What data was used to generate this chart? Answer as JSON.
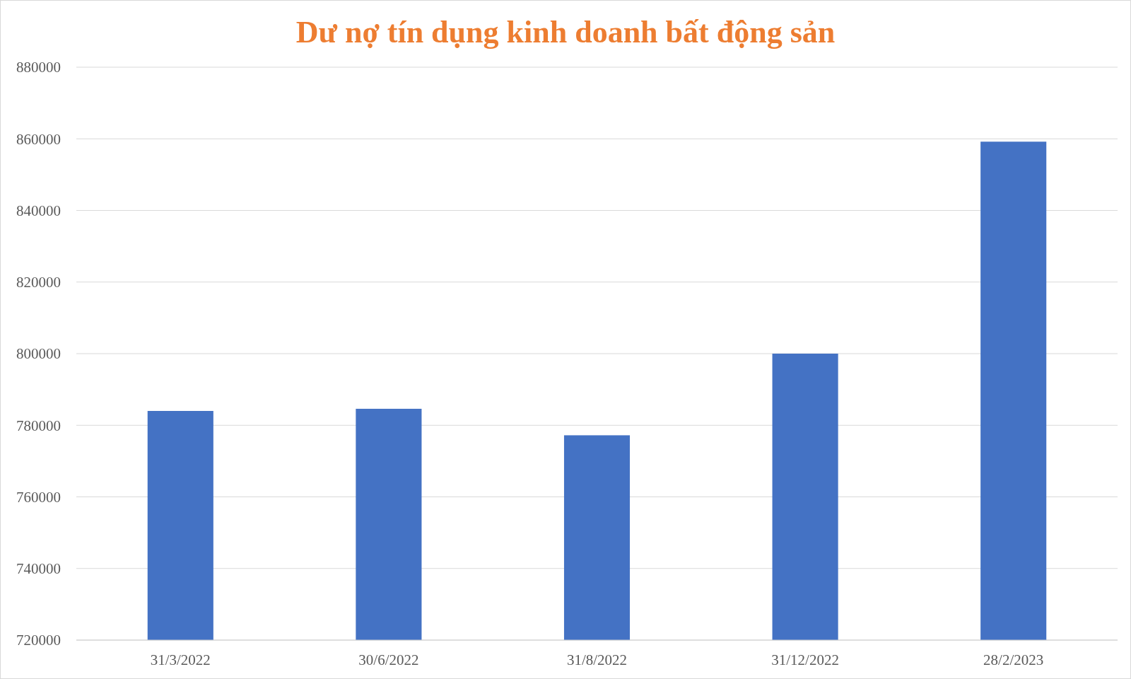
{
  "chart_data": {
    "type": "bar",
    "title": "Dư nợ tín dụng kinh doanh bất động sản",
    "categories": [
      "31/3/2022",
      "30/6/2022",
      "31/8/2022",
      "31/12/2022",
      "28/2/2023"
    ],
    "values": [
      784000,
      784600,
      777200,
      800000,
      859200
    ],
    "color": "#4472c4",
    "ylim": [
      720000,
      880000
    ],
    "yticks": [
      720000,
      740000,
      760000,
      780000,
      800000,
      820000,
      840000,
      860000,
      880000
    ],
    "grid": "y"
  }
}
